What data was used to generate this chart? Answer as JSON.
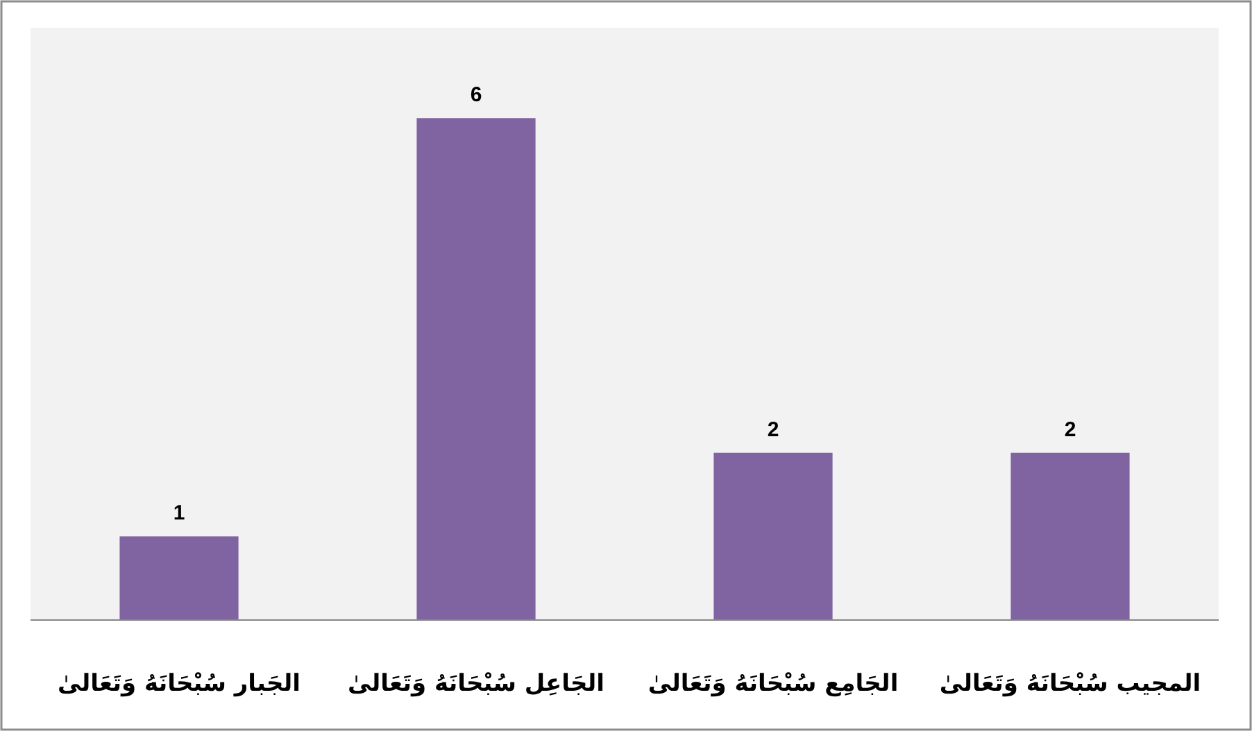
{
  "chart_data": {
    "type": "bar",
    "categories": [
      "الجَبار سُبْحَانَهُ وَتَعَالىٰ",
      "الجَاعِل سُبْحَانَهُ وَتَعَالىٰ",
      "الجَامِع سُبْحَانَهُ وَتَعَالىٰ",
      "المجيب  سُبْحَانَهُ وَتَعَالىٰ"
    ],
    "values": [
      1,
      6,
      2,
      2
    ],
    "color": "#8064a2",
    "data_labels": true
  }
}
